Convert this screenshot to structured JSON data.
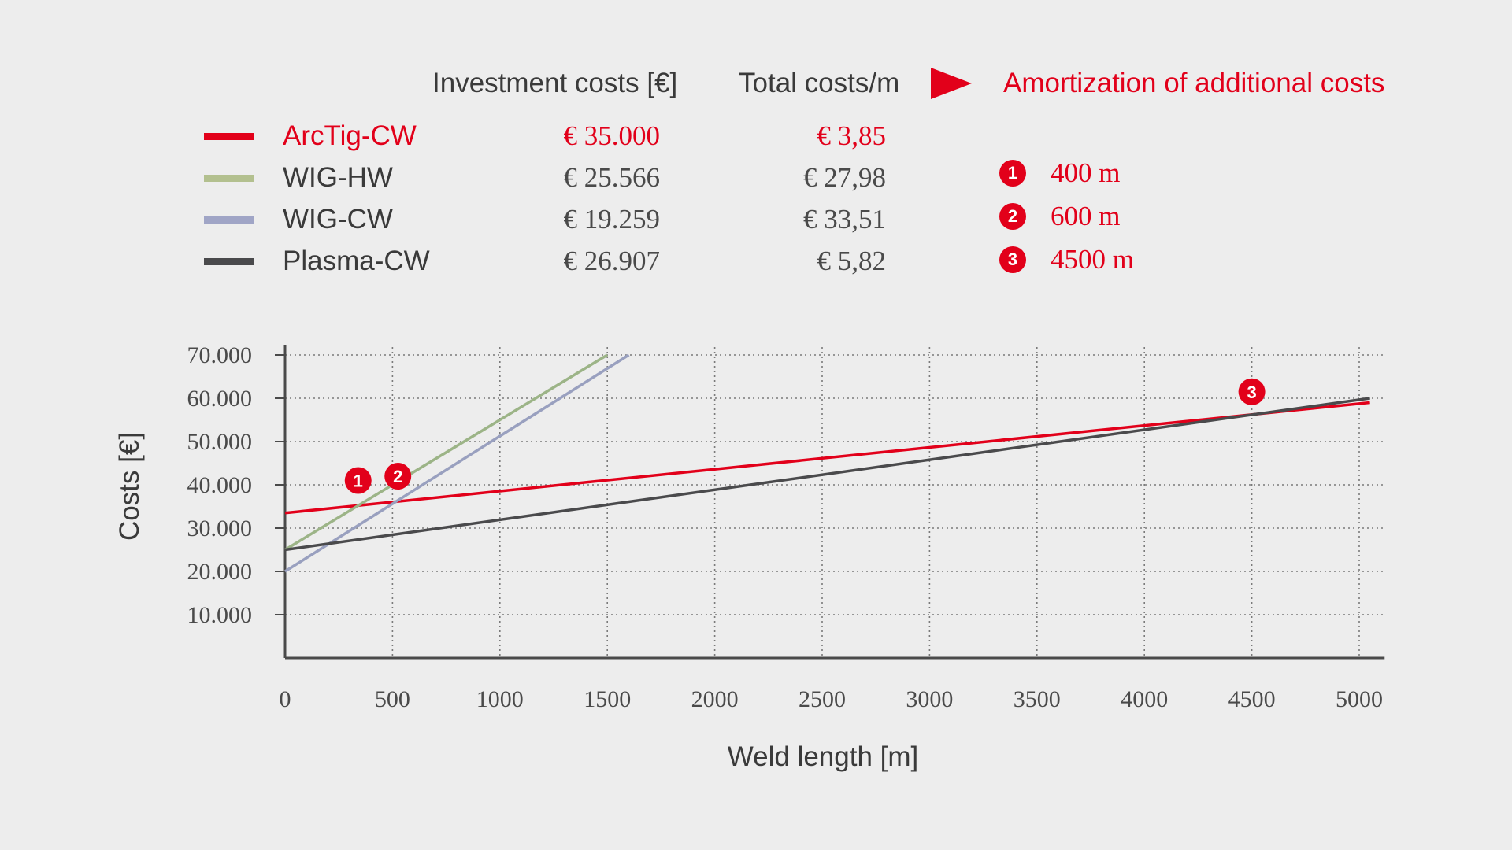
{
  "header": {
    "investment_label": "Investment costs [€]",
    "total_label": "Total costs/m",
    "amortization_label": "Amortization of additional costs",
    "arrow_icon": "play-arrow-icon"
  },
  "legend": [
    {
      "name": "ArcTig-CW",
      "investment": "€ 35.000",
      "total": "€ 3,85",
      "color": "#e2001a",
      "name_color": "#e2001a",
      "value_color": "#e2001a"
    },
    {
      "name": "WIG-HW",
      "investment": "€ 25.566",
      "total": "€ 27,98",
      "color": "#b3c08f",
      "name_color": "#3a3a3a",
      "value_color": "#4a4a4a"
    },
    {
      "name": "WIG-CW",
      "investment": "€ 19.259",
      "total": "€ 33,51",
      "color": "#a0a5c6",
      "name_color": "#3a3a3a",
      "value_color": "#4a4a4a"
    },
    {
      "name": "Plasma-CW",
      "investment": "€ 26.907",
      "total": "€ 5,82",
      "color": "#4a4a4c",
      "name_color": "#3a3a3a",
      "value_color": "#4a4a4a"
    }
  ],
  "amortization": [
    {
      "badge": "1",
      "value": "400 m"
    },
    {
      "badge": "2",
      "value": "600 m"
    },
    {
      "badge": "3",
      "value": "4500 m"
    }
  ],
  "colors": {
    "accent": "#e2001a",
    "axis": "#4a4a4a",
    "grid": "#7a7a7a",
    "background": "#ededed"
  },
  "chart_data": {
    "type": "line",
    "xlabel": "Weld length [m]",
    "ylabel": "Costs [€]",
    "xlim": [
      0,
      5100
    ],
    "ylim": [
      0,
      70000
    ],
    "x_ticks": [
      "0",
      "500",
      "1000",
      "1500",
      "2000",
      "2500",
      "3000",
      "3500",
      "4000",
      "4500",
      "5000"
    ],
    "x_tick_values": [
      0,
      500,
      1000,
      1500,
      2000,
      2500,
      3000,
      3500,
      4000,
      4500,
      5000
    ],
    "y_ticks": [
      "10.000",
      "20.000",
      "30.000",
      "40.000",
      "50.000",
      "60.000",
      "70.000"
    ],
    "y_tick_values": [
      10000,
      20000,
      30000,
      40000,
      50000,
      60000,
      70000
    ],
    "grid": true,
    "series": [
      {
        "name": "ArcTig-CW",
        "color": "#e2001a",
        "x": [
          0,
          5050
        ],
        "y": [
          33500,
          59000
        ]
      },
      {
        "name": "WIG-HW",
        "color": "#9cb487",
        "x": [
          0,
          1500
        ],
        "y": [
          25000,
          70000
        ]
      },
      {
        "name": "WIG-CW",
        "color": "#99a0bf",
        "x": [
          0,
          1600
        ],
        "y": [
          20000,
          70000
        ]
      },
      {
        "name": "Plasma-CW",
        "color": "#4a4a4c",
        "x": [
          0,
          5050
        ],
        "y": [
          25000,
          60000
        ]
      }
    ],
    "markers": [
      {
        "label": "1",
        "x": 340,
        "y": 41000
      },
      {
        "label": "2",
        "x": 525,
        "y": 42000
      },
      {
        "label": "3",
        "x": 4500,
        "y": 61500
      }
    ]
  }
}
